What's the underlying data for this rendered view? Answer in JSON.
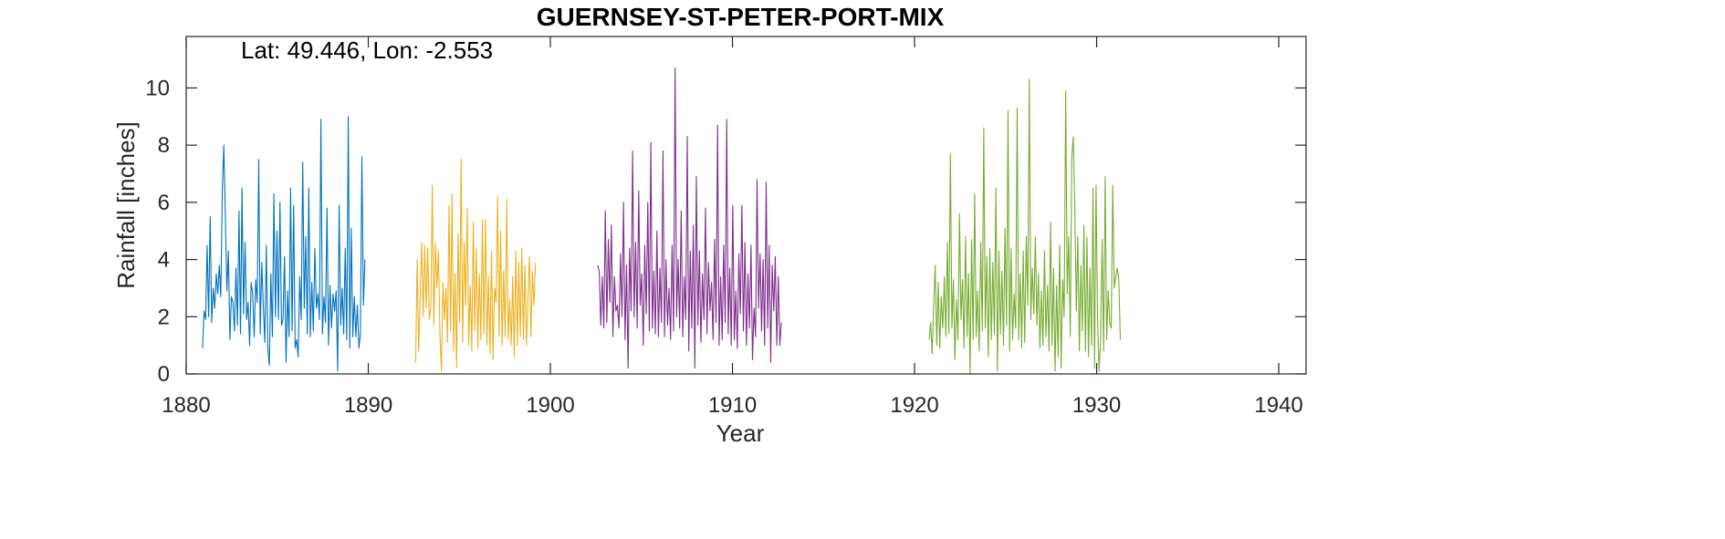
{
  "chart_data": {
    "type": "line",
    "title": "GUERNSEY-ST-PETER-PORT-MIX",
    "annotation": "Lat: 49.446, Lon: -2.553",
    "xlabel": "Year",
    "ylabel": "Rainfall [inches]",
    "xlim": [
      1880,
      1941.5
    ],
    "ylim": [
      0,
      11.8
    ],
    "xticks": [
      1880,
      1890,
      1900,
      1910,
      1920,
      1930,
      1940
    ],
    "yticks": [
      0,
      2,
      4,
      6,
      8,
      10
    ],
    "grid": false,
    "box": true,
    "series": [
      {
        "color": "#0072BD",
        "start_year": 1880.9,
        "values": [
          0.9,
          2.2,
          1.9,
          4.5,
          2.0,
          5.5,
          1.8,
          3.0,
          2.3,
          3.5,
          2.8,
          3.8,
          2.7,
          6.4,
          8.0,
          5.5,
          2.9,
          4.3,
          1.2,
          2.7,
          2.5,
          1.5,
          3.7,
          1.7,
          5.7,
          1.4,
          6.5,
          2.1,
          4.6,
          1.9,
          2.5,
          1.0,
          3.2,
          2.8,
          1.3,
          3.3,
          2.5,
          7.5,
          1.4,
          3.9,
          2.4,
          1.1,
          4.5,
          0.9,
          0.3,
          3.5,
          1.3,
          6.3,
          2.0,
          5.0,
          1.9,
          6.0,
          1.7,
          1.9,
          4.1,
          0.4,
          2.9,
          1.3,
          6.5,
          1.5,
          5.9,
          0.9,
          1.2,
          0.6,
          3.4,
          1.9,
          7.4,
          2.3,
          4.8,
          1.4,
          6.5,
          1.3,
          3.2,
          1.5,
          4.4,
          2.3,
          2.8,
          1.9,
          8.9,
          1.4,
          2.7,
          1.8,
          5.8,
          1.0,
          3.1,
          1.6,
          2.8,
          2.2,
          2.9,
          0.1,
          5.9,
          1.7,
          3.0,
          1.4,
          4.4,
          1.2,
          9.0,
          0.9,
          5.1,
          1.3,
          2.7,
          1.3,
          2.4,
          0.9,
          1.4,
          7.6,
          2.4,
          4.0
        ]
      },
      {
        "color": "#EDB120",
        "start_year": 1892.6,
        "values": [
          0.4,
          4.0,
          0.8,
          2.7,
          4.6,
          2.0,
          4.5,
          2.3,
          4.4,
          1.9,
          2.3,
          6.6,
          1.7,
          4.6,
          3.0,
          4.3,
          1.4,
          0.1,
          3.2,
          1.9,
          3.0,
          1.1,
          5.9,
          1.5,
          6.3,
          0.8,
          3.5,
          0.2,
          4.9,
          1.8,
          7.5,
          1.1,
          4.6,
          2.4,
          5.8,
          1.0,
          3.1,
          0.8,
          5.3,
          1.5,
          4.4,
          0.9,
          3.5,
          1.2,
          5.4,
          1.4,
          5.4,
          1.0,
          3.4,
          0.7,
          4.3,
          0.5,
          3.0,
          2.5,
          6.2,
          1.3,
          5.0,
          1.0,
          3.6,
          1.3,
          6.1,
          1.2,
          2.6,
          1.0,
          3.4,
          0.6,
          4.3,
          1.0,
          3.9,
          1.3,
          4.4,
          1.2,
          3.8,
          1.0,
          2.6,
          4.1,
          1.3,
          3.6,
          2.4,
          3.9
        ]
      },
      {
        "color": "#7E2F8E",
        "start_year": 1902.6,
        "values": [
          3.8,
          3.6,
          1.7,
          3.4,
          1.6,
          5.7,
          1.8,
          4.7,
          2.5,
          5.2,
          1.3,
          3.4,
          2.2,
          2.4,
          1.6,
          4.2,
          2.0,
          6.0,
          1.2,
          3.8,
          0.2,
          4.4,
          2.2,
          7.8,
          2.0,
          4.6,
          1.6,
          6.4,
          2.4,
          3.5,
          1.0,
          4.5,
          2.1,
          6.0,
          1.5,
          8.1,
          1.6,
          3.6,
          1.4,
          5.0,
          1.3,
          3.7,
          1.8,
          7.8,
          1.3,
          4.0,
          1.7,
          3.0,
          1.2,
          4.5,
          1.5,
          10.7,
          2.0,
          4.0,
          1.6,
          5.7,
          1.3,
          3.4,
          1.9,
          8.3,
          0.8,
          4.3,
          1.6,
          5.2,
          0.2,
          6.9,
          1.7,
          4.3,
          1.1,
          3.5,
          1.9,
          5.8,
          1.4,
          3.9,
          2.2,
          3.2,
          1.2,
          4.7,
          1.8,
          8.7,
          1.0,
          3.4,
          1.2,
          4.5,
          1.8,
          8.9,
          1.4,
          3.7,
          1.0,
          5.9,
          1.2,
          2.9,
          0.9,
          4.2,
          2.1,
          5.9,
          1.5,
          4.6,
          1.0,
          3.5,
          1.6,
          4.5,
          0.5,
          2.3,
          1.3,
          6.8,
          2.3,
          4.2,
          1.5,
          4.0,
          1.0,
          6.7,
          1.6,
          4.5,
          0.4,
          3.8,
          2.2,
          4.1,
          1.0,
          3.4,
          1.0,
          1.8
        ]
      },
      {
        "color": "#77AC30",
        "start_year": 1920.8,
        "values": [
          1.2,
          1.8,
          0.7,
          2.4,
          3.8,
          1.0,
          3.2,
          0.9,
          2.7,
          1.6,
          3.4,
          1.3,
          4.6,
          1.4,
          7.7,
          1.6,
          3.3,
          0.5,
          2.6,
          1.2,
          5.6,
          1.9,
          3.3,
          0.9,
          4.8,
          1.3,
          3.5,
          0.0,
          4.7,
          1.2,
          6.3,
          1.3,
          2.9,
          0.8,
          4.6,
          1.5,
          8.6,
          1.6,
          4.1,
          0.6,
          4.4,
          1.2,
          3.9,
          1.4,
          6.5,
          0.1,
          4.3,
          1.4,
          3.6,
          1.0,
          5.1,
          1.7,
          9.2,
          0.8,
          4.4,
          1.2,
          2.8,
          1.6,
          9.3,
          1.2,
          3.5,
          0.9,
          4.3,
          1.1,
          4.8,
          2.4,
          10.3,
          1.9,
          3.7,
          2.1,
          4.8,
          1.7,
          3.5,
          0.9,
          2.9,
          1.0,
          4.3,
          1.3,
          3.1,
          0.8,
          5.3,
          1.0,
          3.7,
          0.1,
          3.1,
          0.6,
          4.5,
          0.2,
          3.3,
          2.0,
          9.9,
          2.8,
          4.8,
          1.3,
          7.6,
          8.3,
          5.9,
          2.2,
          4.8,
          0.8,
          3.8,
          1.5,
          5.2,
          0.8,
          4.8,
          0.6,
          3.7,
          1.0,
          6.5,
          0.2,
          6.6,
          1.9,
          0.1,
          1.2,
          4.7,
          0.8,
          6.9,
          1.2,
          2.9,
          1.8,
          1.6,
          6.6,
          3.0,
          3.4,
          3.7,
          3.3,
          1.2
        ]
      }
    ]
  }
}
